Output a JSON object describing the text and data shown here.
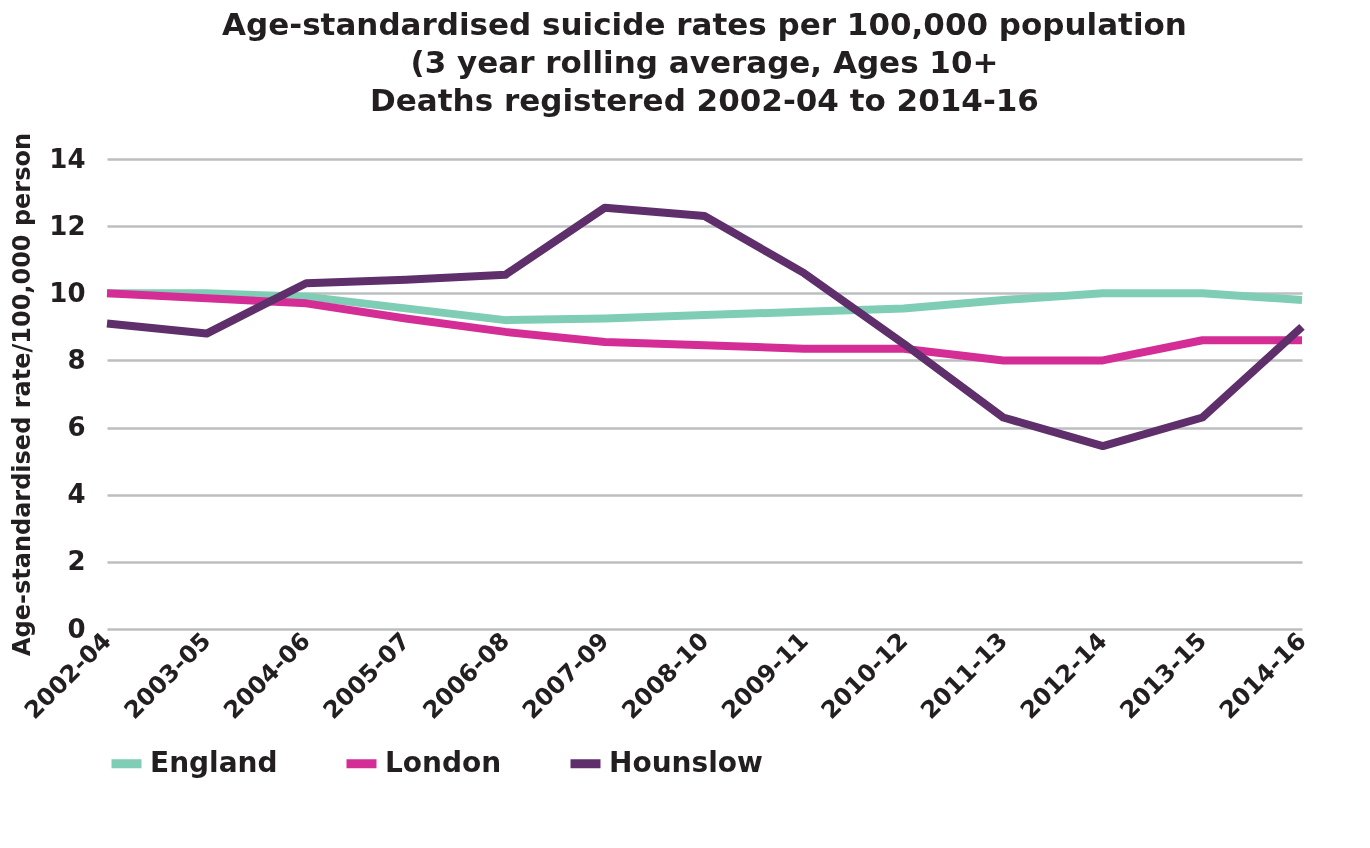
{
  "chart_data": {
    "type": "line",
    "title": "Age-standardised suicide rates per 100,000 population\n(3 year rolling average, Ages 10+\nDeaths registered 2002-04 to 2014-16",
    "ylabel": "Age-standardised rate/100,000 person",
    "categories": [
      "2002-04",
      "2003-05",
      "2004-06",
      "2005-07",
      "2006-08",
      "2007-09",
      "2008-10",
      "2009-11",
      "2010-12",
      "2011-13",
      "2012-14",
      "2013-15",
      "2014-16"
    ],
    "series": [
      {
        "name": "England",
        "color": "#7fcdb4",
        "values": [
          10.0,
          10.0,
          9.9,
          9.55,
          9.2,
          9.25,
          9.35,
          9.45,
          9.55,
          9.8,
          10.0,
          10.0,
          9.8
        ]
      },
      {
        "name": "London",
        "color": "#d42e96",
        "values": [
          10.0,
          9.85,
          9.7,
          9.25,
          8.85,
          8.55,
          8.45,
          8.35,
          8.35,
          8.0,
          8.0,
          8.6,
          8.6
        ]
      },
      {
        "name": "Hounslow",
        "color": "#5e2f6b",
        "values": [
          9.1,
          8.8,
          10.3,
          10.4,
          10.55,
          12.55,
          12.3,
          10.6,
          8.5,
          6.3,
          5.45,
          6.3,
          9.0
        ]
      }
    ],
    "ylim": [
      0,
      14
    ],
    "yticks": [
      0,
      2,
      4,
      6,
      8,
      10,
      12,
      14
    ],
    "grid": "y",
    "legend": "bottom",
    "marker": "none",
    "line_style": "solid"
  }
}
